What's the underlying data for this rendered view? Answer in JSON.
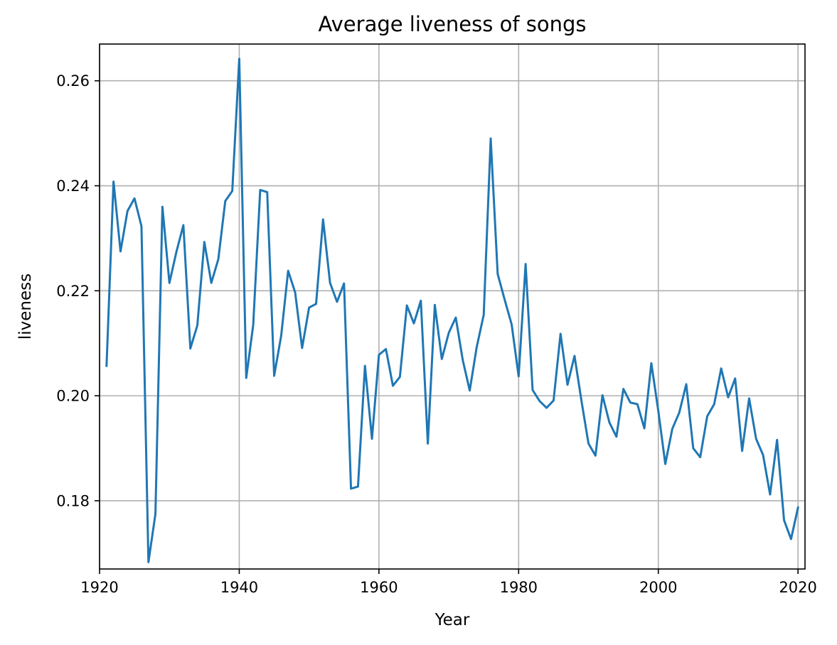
{
  "chart_data": {
    "type": "line",
    "title": "Average liveness of songs",
    "xlabel": "Year",
    "ylabel": "liveness",
    "xlim": [
      1920,
      2021
    ],
    "ylim": [
      0.167,
      0.267
    ],
    "xticks": [
      1920,
      1940,
      1960,
      1980,
      2000,
      2020
    ],
    "yticks": [
      0.18,
      0.2,
      0.22,
      0.24,
      0.26
    ],
    "xtick_labels": [
      "1920",
      "1940",
      "1960",
      "1980",
      "2000",
      "2020"
    ],
    "ytick_labels": [
      "0.18",
      "0.20",
      "0.22",
      "0.24",
      "0.26"
    ],
    "grid": true,
    "series_color": "#1f77b4",
    "x": [
      1921,
      1922,
      1923,
      1924,
      1925,
      1926,
      1927,
      1928,
      1929,
      1930,
      1931,
      1932,
      1933,
      1934,
      1935,
      1936,
      1937,
      1938,
      1939,
      1940,
      1941,
      1942,
      1943,
      1944,
      1945,
      1946,
      1947,
      1948,
      1949,
      1950,
      1951,
      1952,
      1953,
      1954,
      1955,
      1956,
      1957,
      1958,
      1959,
      1960,
      1961,
      1962,
      1963,
      1964,
      1965,
      1966,
      1967,
      1968,
      1969,
      1970,
      1971,
      1972,
      1973,
      1974,
      1975,
      1976,
      1977,
      1978,
      1979,
      1980,
      1981,
      1982,
      1983,
      1984,
      1985,
      1986,
      1987,
      1988,
      1989,
      1990,
      1991,
      1992,
      1993,
      1994,
      1995,
      1996,
      1997,
      1998,
      1999,
      2000,
      2001,
      2002,
      2003,
      2004,
      2005,
      2006,
      2007,
      2008,
      2009,
      2010,
      2011,
      2012,
      2013,
      2014,
      2015,
      2016,
      2017,
      2018,
      2019,
      2020
    ],
    "series": [
      {
        "values": [
          0.2057,
          0.2408,
          0.2275,
          0.2352,
          0.2376,
          0.2323,
          0.1683,
          0.1775,
          0.236,
          0.2215,
          0.2274,
          0.2325,
          0.209,
          0.2134,
          0.2293,
          0.2215,
          0.226,
          0.2371,
          0.239,
          0.2642,
          0.2034,
          0.2135,
          0.2392,
          0.2388,
          0.2038,
          0.2114,
          0.2238,
          0.2197,
          0.2091,
          0.2168,
          0.2175,
          0.2336,
          0.2215,
          0.2179,
          0.2214,
          0.1823,
          0.1827,
          0.2057,
          0.1918,
          0.2078,
          0.2089,
          0.2019,
          0.2036,
          0.2172,
          0.2138,
          0.2181,
          0.1909,
          0.2173,
          0.207,
          0.212,
          0.2149,
          0.2068,
          0.201,
          0.2093,
          0.2154,
          0.249,
          0.2232,
          0.2183,
          0.2136,
          0.2037,
          0.2251,
          0.2011,
          0.199,
          0.1977,
          0.1991,
          0.2118,
          0.2021,
          0.2076,
          0.199,
          0.1909,
          0.1886,
          0.2001,
          0.1949,
          0.1922,
          0.2013,
          0.1987,
          0.1984,
          0.1938,
          0.2062,
          0.1971,
          0.187,
          0.1937,
          0.1968,
          0.2022,
          0.19,
          0.1883,
          0.1961,
          0.1984,
          0.2052,
          0.1997,
          0.2033,
          0.1895,
          0.1995,
          0.1918,
          0.1887,
          0.1812,
          0.1916,
          0.1763,
          0.1727,
          0.1787
        ]
      }
    ]
  }
}
